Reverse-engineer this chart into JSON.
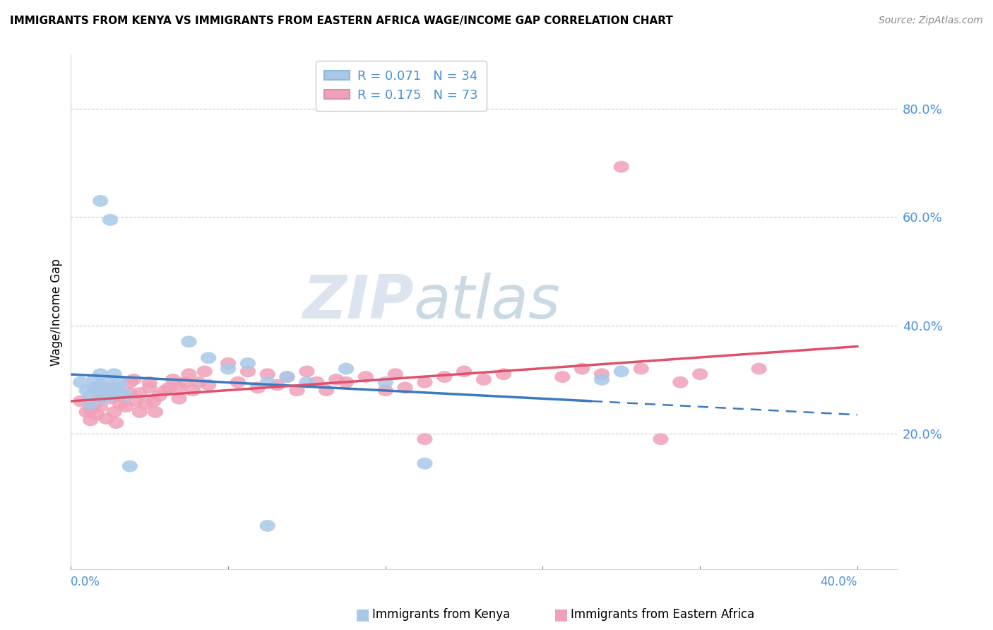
{
  "title": "IMMIGRANTS FROM KENYA VS IMMIGRANTS FROM EASTERN AFRICA WAGE/INCOME GAP CORRELATION CHART",
  "source": "Source: ZipAtlas.com",
  "ylabel": "Wage/Income Gap",
  "kenya_color": "#a8c8e8",
  "eastern_color": "#f0a0b8",
  "kenya_line_color": "#3a7abf",
  "eastern_line_color": "#e0506a",
  "kenya_R": 0.071,
  "kenya_N": 34,
  "eastern_R": 0.175,
  "eastern_N": 73,
  "xlim": [
    0.0,
    0.42
  ],
  "ylim": [
    -0.05,
    0.9
  ],
  "y_ticks": [
    0.2,
    0.4,
    0.6,
    0.8
  ],
  "y_tick_labels": [
    "20.0%",
    "40.0%",
    "60.0%",
    "80.0%"
  ],
  "background_color": "#ffffff",
  "grid_color": "#cccccc",
  "right_axis_color": "#4a90d9",
  "legend_text_color": "#4a90d9",
  "watermark_zip_color": "#c8d4e0",
  "watermark_atlas_color": "#a8c0d8"
}
